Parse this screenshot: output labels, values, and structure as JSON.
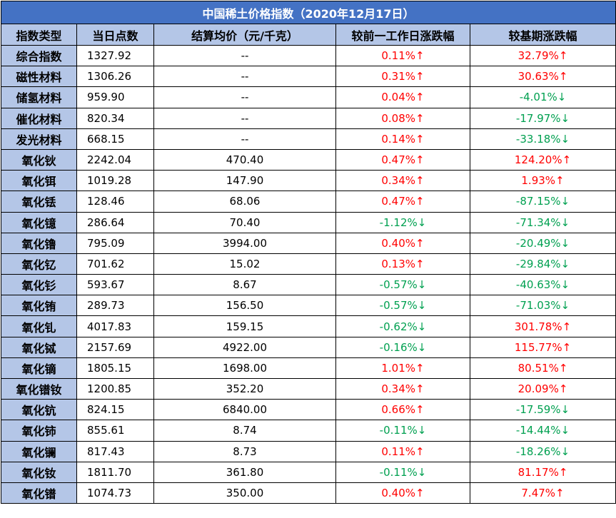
{
  "title": "中国稀土价格指数（2020年12月17日）",
  "headers": [
    "指数类型",
    "当日点数",
    "结算均价（元/千克）",
    "较前一工作日涨跌幅",
    "较基期涨跌幅"
  ],
  "colors": {
    "title_bg": "#4472c4",
    "header_bg": "#b4c6e7",
    "up": "#ff0000",
    "down": "#00a050"
  },
  "rows": [
    {
      "name": "综合指数",
      "index": "1327.92",
      "price": "--",
      "daily": "0.11%↑",
      "base": "32.79%↑"
    },
    {
      "name": "磁性材料",
      "index": "1306.26",
      "price": "--",
      "daily": "0.31%↑",
      "base": "30.63%↑"
    },
    {
      "name": "储氢材料",
      "index": "959.90",
      "price": "--",
      "daily": "0.04%↑",
      "base": "-4.01%↓"
    },
    {
      "name": "催化材料",
      "index": "820.34",
      "price": "--",
      "daily": "0.08%↑",
      "base": "-17.97%↓"
    },
    {
      "name": "发光材料",
      "index": "668.15",
      "price": "--",
      "daily": "0.14%↑",
      "base": "-33.18%↓"
    },
    {
      "name": "氧化钬",
      "index": "2242.04",
      "price": "470.40",
      "daily": "0.47%↑",
      "base": "124.20%↑"
    },
    {
      "name": "氧化铒",
      "index": "1019.28",
      "price": "147.90",
      "daily": "0.34%↑",
      "base": "1.93%↑"
    },
    {
      "name": "氧化铥",
      "index": "128.46",
      "price": "68.06",
      "daily": "0.47%↑",
      "base": "-87.15%↓"
    },
    {
      "name": "氧化镱",
      "index": "286.64",
      "price": "70.40",
      "daily": "-1.12%↓",
      "base": "-71.34%↓"
    },
    {
      "name": "氧化镥",
      "index": "795.09",
      "price": "3994.00",
      "daily": "0.40%↑",
      "base": "-20.49%↓"
    },
    {
      "name": "氧化钇",
      "index": "701.62",
      "price": "15.02",
      "daily": "0.13%↑",
      "base": "-29.84%↓"
    },
    {
      "name": "氧化钐",
      "index": "593.67",
      "price": "8.67",
      "daily": "-0.57%↓",
      "base": "-40.63%↓"
    },
    {
      "name": "氧化铕",
      "index": "289.73",
      "price": "156.50",
      "daily": "-0.57%↓",
      "base": "-71.03%↓"
    },
    {
      "name": "氧化钆",
      "index": "4017.83",
      "price": "159.15",
      "daily": "-0.62%↓",
      "base": "301.78%↑"
    },
    {
      "name": "氧化铽",
      "index": "2157.69",
      "price": "4922.00",
      "daily": "-0.16%↓",
      "base": "115.77%↑"
    },
    {
      "name": "氧化镝",
      "index": "1805.15",
      "price": "1698.00",
      "daily": "1.01%↑",
      "base": "80.51%↑"
    },
    {
      "name": "氧化镨钕",
      "index": "1200.85",
      "price": "352.20",
      "daily": "0.34%↑",
      "base": "20.09%↑"
    },
    {
      "name": "氧化钪",
      "index": "824.15",
      "price": "6840.00",
      "daily": "0.66%↑",
      "base": "-17.59%↓"
    },
    {
      "name": "氧化铈",
      "index": "855.61",
      "price": "8.74",
      "daily": "-0.11%↓",
      "base": "-14.44%↓"
    },
    {
      "name": "氧化镧",
      "index": "817.43",
      "price": "8.73",
      "daily": "0.11%↑",
      "base": "-18.26%↓"
    },
    {
      "name": "氧化钕",
      "index": "1811.70",
      "price": "361.80",
      "daily": "-0.11%↓",
      "base": "81.17%↑"
    },
    {
      "name": "氧化镨",
      "index": "1074.73",
      "price": "350.00",
      "daily": "0.40%↑",
      "base": "7.47%↑"
    }
  ]
}
